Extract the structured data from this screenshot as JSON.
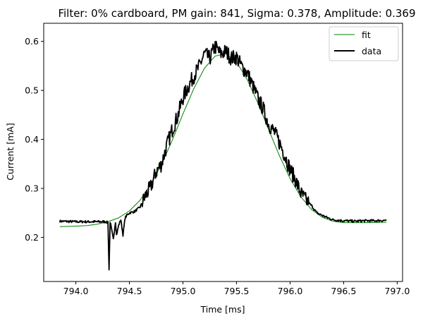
{
  "chart_data": {
    "type": "line",
    "title": "Filter: 0% cardboard, PM gain: 841, Sigma: 0.378, Amplitude: 0.369",
    "xlabel": "Time [ms]",
    "ylabel": "Current [mA]",
    "xlim": [
      793.7,
      797.05
    ],
    "ylim": [
      0.11,
      0.637
    ],
    "xticks": [
      794.0,
      794.5,
      795.0,
      795.5,
      796.0,
      796.5,
      797.0
    ],
    "xtick_labels": [
      "794.0",
      "794.5",
      "795.0",
      "795.5",
      "796.0",
      "796.5",
      "797.0"
    ],
    "yticks": [
      0.2,
      0.3,
      0.4,
      0.5,
      0.6
    ],
    "ytick_labels": [
      "0.2",
      "0.3",
      "0.4",
      "0.5",
      "0.6"
    ],
    "grid": false,
    "legend_position": "top-right",
    "series": [
      {
        "name": "fit",
        "color": "#008000",
        "style": "thin-line",
        "x": [
          793.85,
          794.0,
          794.1,
          794.2,
          794.3,
          794.4,
          794.5,
          794.6,
          794.7,
          794.8,
          794.9,
          795.0,
          795.1,
          795.2,
          795.3,
          795.4,
          795.5,
          795.6,
          795.7,
          795.8,
          795.9,
          796.0,
          796.1,
          796.2,
          796.3,
          796.4,
          796.5,
          796.6,
          796.7,
          796.9
        ],
        "y": [
          0.222,
          0.223,
          0.224,
          0.227,
          0.232,
          0.24,
          0.254,
          0.276,
          0.308,
          0.349,
          0.398,
          0.452,
          0.503,
          0.545,
          0.57,
          0.575,
          0.558,
          0.522,
          0.474,
          0.42,
          0.367,
          0.32,
          0.283,
          0.257,
          0.241,
          0.233,
          0.23,
          0.23,
          0.23,
          0.231
        ]
      },
      {
        "name": "data",
        "color": "#000000",
        "style": "thick-noisy-line",
        "x": [
          793.85,
          794.0,
          794.1,
          794.2,
          794.28,
          794.3,
          794.31,
          794.32,
          794.35,
          794.37,
          794.38,
          794.4,
          794.42,
          794.44,
          794.46,
          794.48,
          794.5,
          794.55,
          794.6,
          794.65,
          794.7,
          794.75,
          794.8,
          794.85,
          794.9,
          794.95,
          795.0,
          795.05,
          795.1,
          795.15,
          795.2,
          795.25,
          795.3,
          795.35,
          795.4,
          795.45,
          795.5,
          795.55,
          795.6,
          795.65,
          795.7,
          795.75,
          795.8,
          795.85,
          795.9,
          795.95,
          796.0,
          796.05,
          796.1,
          796.15,
          796.2,
          796.25,
          796.3,
          796.35,
          796.4,
          796.5,
          796.6,
          796.7,
          796.8,
          796.9
        ],
        "y": [
          0.233,
          0.232,
          0.232,
          0.232,
          0.232,
          0.23,
          0.134,
          0.232,
          0.196,
          0.232,
          0.205,
          0.225,
          0.236,
          0.205,
          0.24,
          0.246,
          0.25,
          0.253,
          0.262,
          0.285,
          0.303,
          0.334,
          0.35,
          0.388,
          0.42,
          0.447,
          0.485,
          0.508,
          0.529,
          0.548,
          0.575,
          0.565,
          0.59,
          0.574,
          0.58,
          0.566,
          0.568,
          0.548,
          0.536,
          0.51,
          0.483,
          0.462,
          0.431,
          0.416,
          0.394,
          0.368,
          0.339,
          0.318,
          0.29,
          0.275,
          0.265,
          0.25,
          0.245,
          0.24,
          0.236,
          0.234,
          0.233,
          0.234,
          0.234,
          0.235
        ]
      }
    ]
  }
}
